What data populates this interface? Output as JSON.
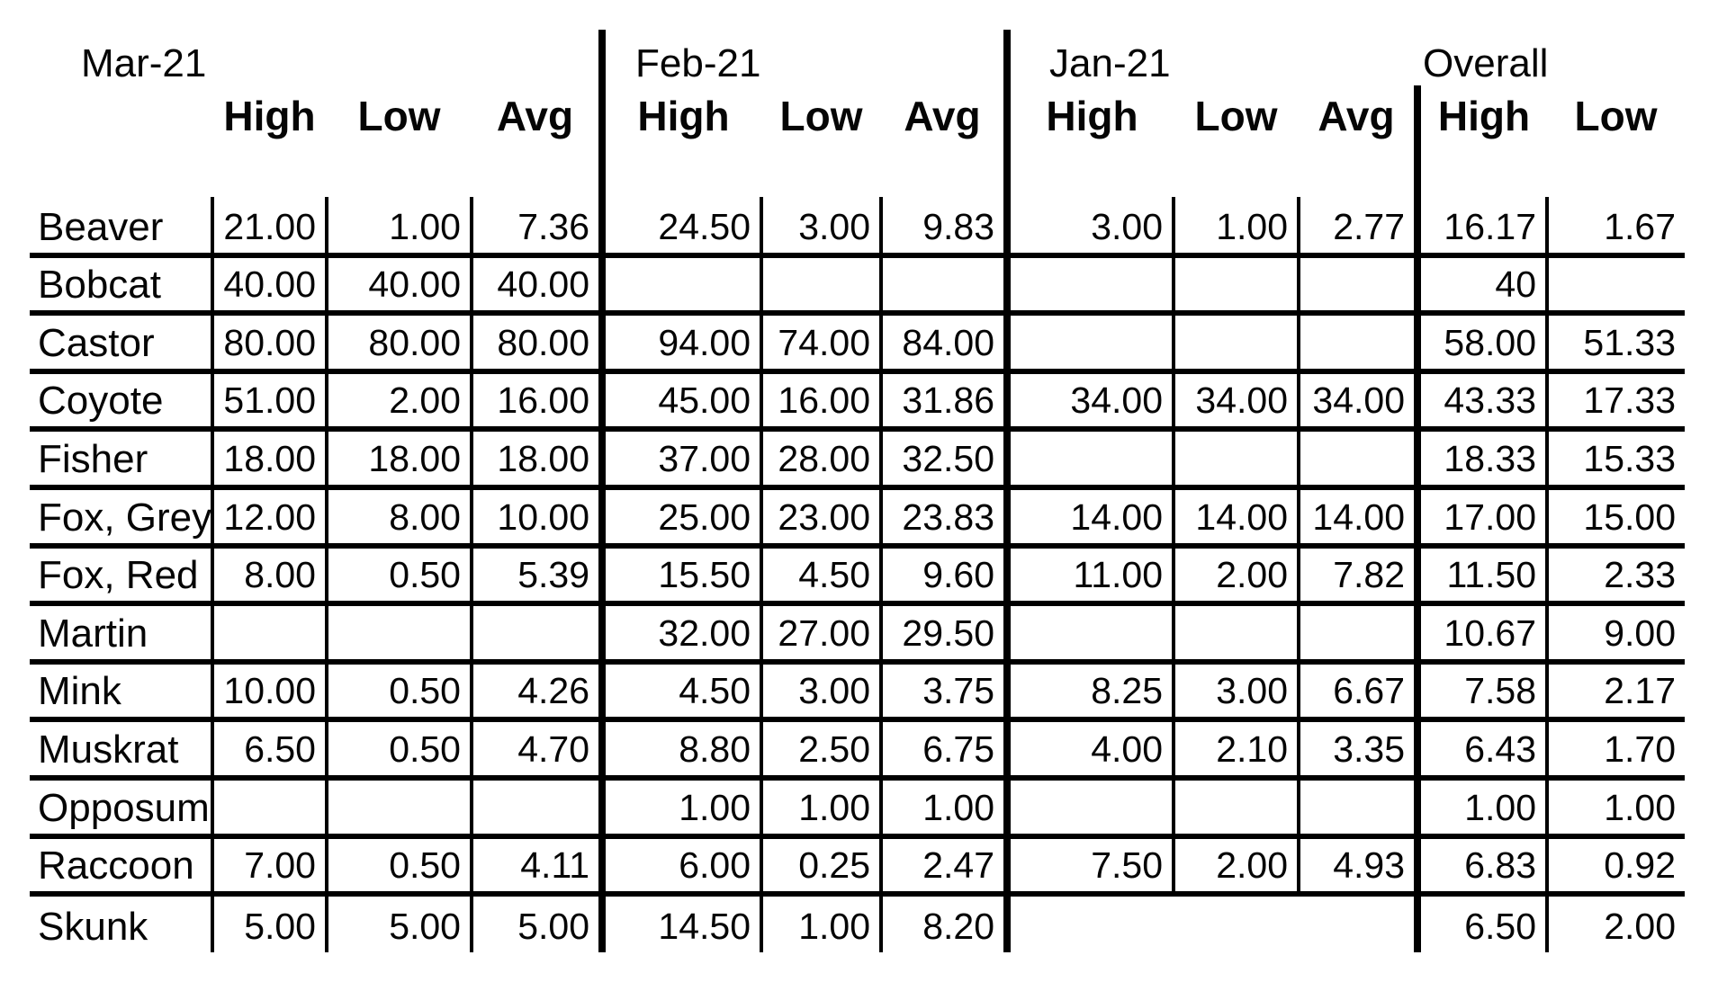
{
  "style": {
    "background_color": "#ffffff",
    "text_color": "#050505",
    "border_color": "#000000"
  },
  "chart_data": {
    "type": "table",
    "description_visible_text_only": "Fur price table by month with High/Low/Avg per month and Overall High/Low",
    "groups": [
      {
        "label": "Mar-21",
        "columns": [
          "High",
          "Low",
          "Avg"
        ]
      },
      {
        "label": "Feb-21",
        "columns": [
          "High",
          "Low",
          "Avg"
        ]
      },
      {
        "label": "Jan-21",
        "columns": [
          "High",
          "Low",
          "Avg"
        ]
      },
      {
        "label": "Overall",
        "columns": [
          "High",
          "Low"
        ]
      }
    ],
    "row_header_column": "",
    "rows": [
      {
        "animal": "Beaver",
        "values": [
          "21.00",
          "1.00",
          "7.36",
          "24.50",
          "3.00",
          "9.83",
          "3.00",
          "1.00",
          "2.77",
          "16.17",
          "1.67"
        ]
      },
      {
        "animal": "Bobcat",
        "values": [
          "40.00",
          "40.00",
          "40.00",
          "",
          "",
          "",
          "",
          "",
          "",
          "40",
          ""
        ]
      },
      {
        "animal": "Castor",
        "values": [
          "80.00",
          "80.00",
          "80.00",
          "94.00",
          "74.00",
          "84.00",
          "",
          "",
          "",
          "58.00",
          "51.33"
        ]
      },
      {
        "animal": "Coyote",
        "values": [
          "51.00",
          "2.00",
          "16.00",
          "45.00",
          "16.00",
          "31.86",
          "34.00",
          "34.00",
          "34.00",
          "43.33",
          "17.33"
        ]
      },
      {
        "animal": "Fisher",
        "values": [
          "18.00",
          "18.00",
          "18.00",
          "37.00",
          "28.00",
          "32.50",
          "",
          "",
          "",
          "18.33",
          "15.33"
        ]
      },
      {
        "animal": "Fox, Grey",
        "values": [
          "12.00",
          "8.00",
          "10.00",
          "25.00",
          "23.00",
          "23.83",
          "14.00",
          "14.00",
          "14.00",
          "17.00",
          "15.00"
        ]
      },
      {
        "animal": "Fox, Red",
        "values": [
          "8.00",
          "0.50",
          "5.39",
          "15.50",
          "4.50",
          "9.60",
          "11.00",
          "2.00",
          "7.82",
          "11.50",
          "2.33"
        ]
      },
      {
        "animal": "Martin",
        "values": [
          "",
          "",
          "",
          "32.00",
          "27.00",
          "29.50",
          "",
          "",
          "",
          "10.67",
          "9.00"
        ]
      },
      {
        "animal": "Mink",
        "values": [
          "10.00",
          "0.50",
          "4.26",
          "4.50",
          "3.00",
          "3.75",
          "8.25",
          "3.00",
          "6.67",
          "7.58",
          "2.17"
        ]
      },
      {
        "animal": "Muskrat",
        "values": [
          "6.50",
          "0.50",
          "4.70",
          "8.80",
          "2.50",
          "6.75",
          "4.00",
          "2.10",
          "3.35",
          "6.43",
          "1.70"
        ]
      },
      {
        "animal": "Opposum",
        "values": [
          "",
          "",
          "",
          "1.00",
          "1.00",
          "1.00",
          "",
          "",
          "",
          "1.00",
          "1.00"
        ]
      },
      {
        "animal": "Raccoon",
        "values": [
          "7.00",
          "0.50",
          "4.11",
          "6.00",
          "0.25",
          "2.47",
          "7.50",
          "2.00",
          "4.93",
          "6.83",
          "0.92"
        ]
      },
      {
        "animal": "Skunk",
        "values": [
          "5.00",
          "5.00",
          "5.00",
          "14.50",
          "1.00",
          "8.20",
          "",
          "",
          "",
          "6.50",
          "2.00"
        ]
      }
    ]
  }
}
